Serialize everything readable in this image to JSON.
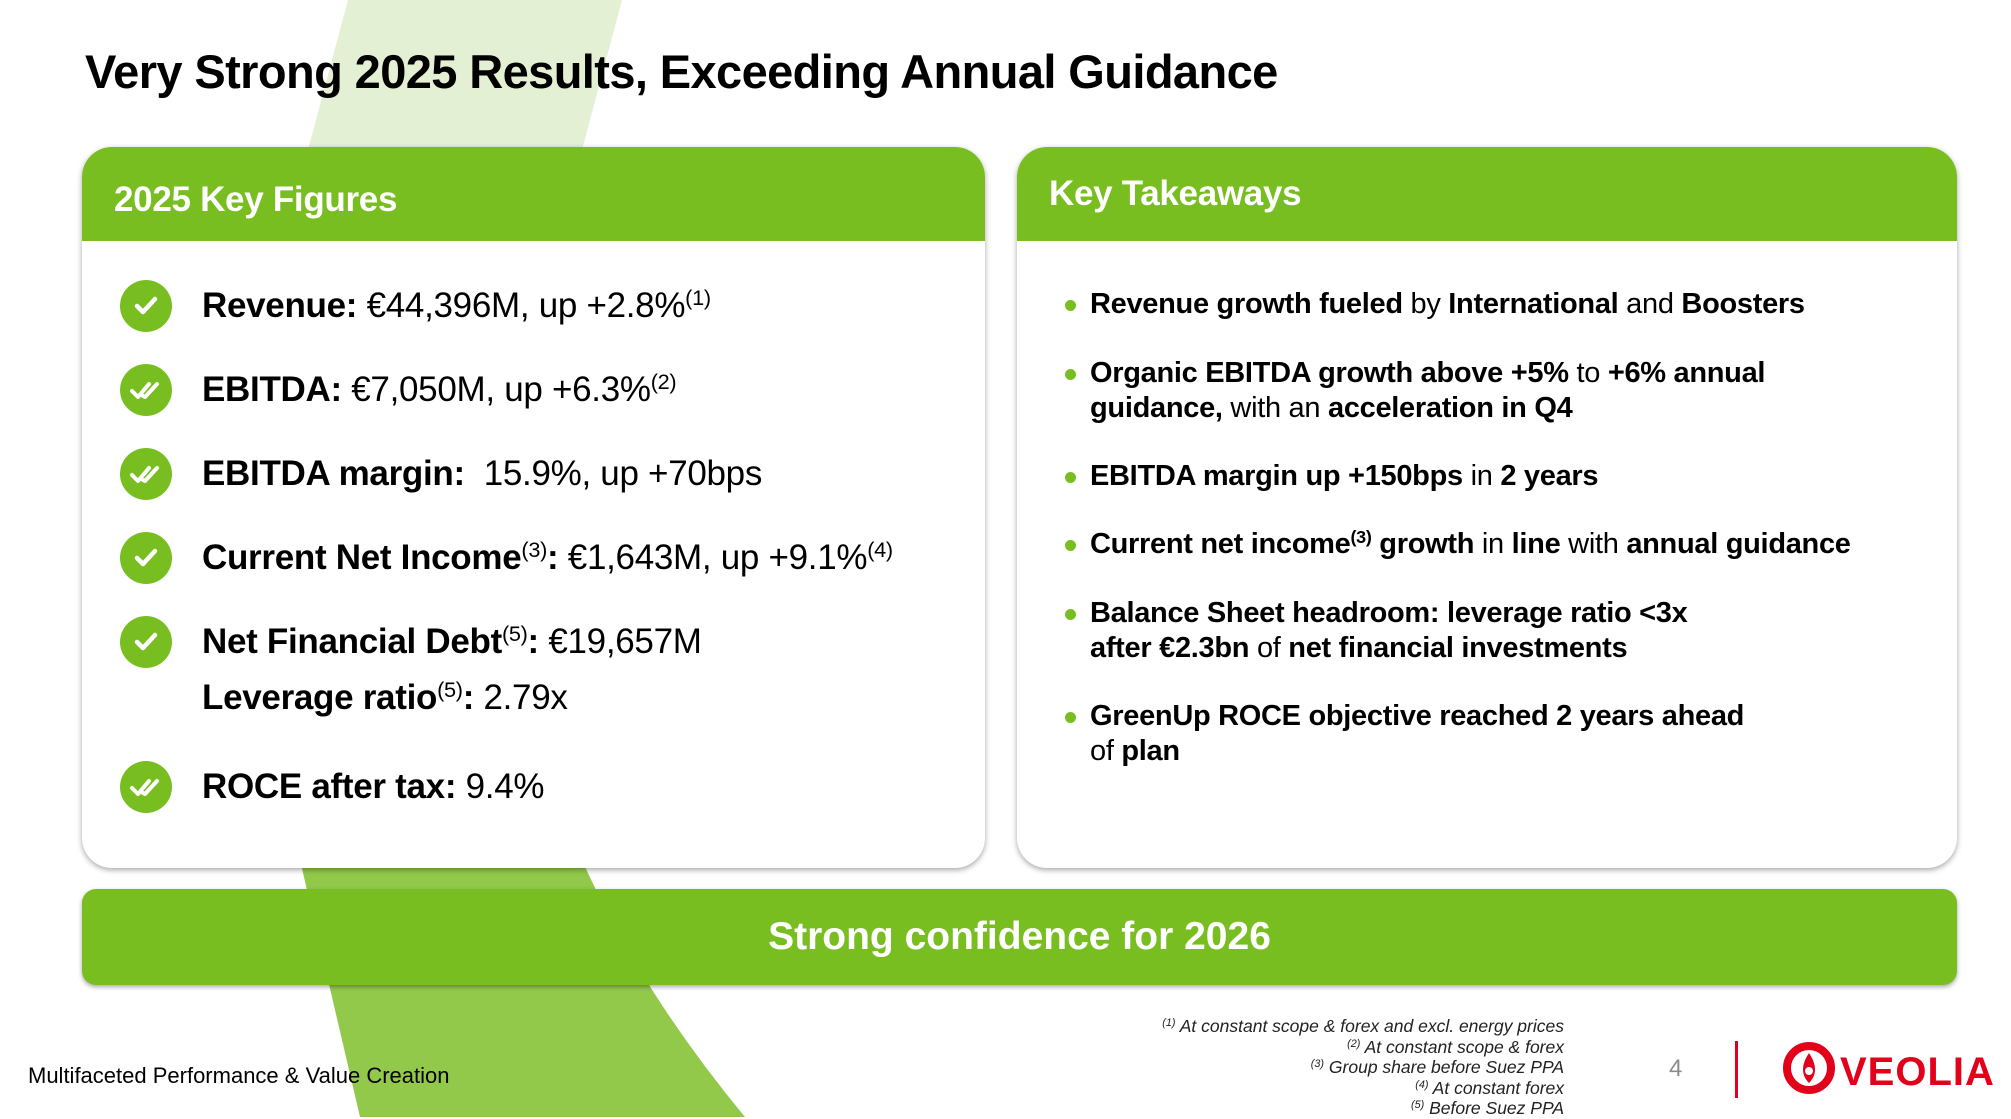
{
  "title": "Very Strong 2025 Results, Exceeding Annual Guidance",
  "colors": {
    "brand_green": "#78be20",
    "light_band": "#e3f0d4",
    "mid_band": "#93c94b",
    "veolia_red": "#e2001a"
  },
  "key_figures": {
    "heading": "2025 Key Figures",
    "items": [
      {
        "icon": "check-icon",
        "segments": [
          {
            "t": "Revenue: ",
            "b": true
          },
          {
            "t": "€44,396M, up +2.8%"
          },
          {
            "t": "(1)",
            "sup": true
          }
        ]
      },
      {
        "icon": "double-check-icon",
        "segments": [
          {
            "t": "EBITDA: ",
            "b": true
          },
          {
            "t": "€7,050M, up +6.3%"
          },
          {
            "t": "(2)",
            "sup": true
          }
        ]
      },
      {
        "icon": "double-check-icon",
        "segments": [
          {
            "t": "EBITDA margin: ",
            "b": true
          },
          {
            "t": " 15.9%, up +70bps"
          }
        ]
      },
      {
        "icon": "check-icon",
        "segments": [
          {
            "t": "Current Net Income",
            "b": true
          },
          {
            "t": "(3)",
            "sup": true
          },
          {
            "t": ": ",
            "b": true
          },
          {
            "t": "€1,643M, up +9.1%"
          },
          {
            "t": "(4)",
            "sup": true
          }
        ]
      },
      {
        "icon": "check-icon",
        "segments": [
          {
            "t": "Net Financial Debt",
            "b": true
          },
          {
            "t": "(5)",
            "sup": true
          },
          {
            "t": ": ",
            "b": true
          },
          {
            "t": "€19,657M"
          }
        ]
      },
      {
        "icon": null,
        "segments": [
          {
            "t": "Leverage ratio",
            "b": true
          },
          {
            "t": "(5)",
            "sup": true
          },
          {
            "t": ": ",
            "b": true
          },
          {
            "t": "2.79x"
          }
        ]
      },
      {
        "icon": "double-check-icon",
        "segments": [
          {
            "t": "ROCE after tax: ",
            "b": true
          },
          {
            "t": "9.4%"
          }
        ]
      }
    ]
  },
  "key_takeaways": {
    "heading": "Key Takeaways",
    "items": [
      {
        "lines": [
          [
            {
              "t": "Revenue growth fueled",
              "b": true
            },
            {
              "t": " by "
            },
            {
              "t": "International",
              "b": true
            },
            {
              "t": " and "
            },
            {
              "t": "Boosters",
              "b": true
            }
          ]
        ]
      },
      {
        "lines": [
          [
            {
              "t": "Organic EBITDA growth above +5%",
              "b": true
            },
            {
              "t": " to "
            },
            {
              "t": "+6% annual",
              "b": true
            }
          ],
          [
            {
              "t": "guidance,",
              "b": true
            },
            {
              "t": " with an "
            },
            {
              "t": "acceleration in Q4",
              "b": true
            }
          ]
        ]
      },
      {
        "lines": [
          [
            {
              "t": "EBITDA margin up +150bps",
              "b": true
            },
            {
              "t": " in "
            },
            {
              "t": "2 years",
              "b": true
            }
          ]
        ]
      },
      {
        "lines": [
          [
            {
              "t": "Current net income",
              "b": true
            },
            {
              "t": "(3)",
              "sup": true,
              "b": true
            },
            {
              "t": " growth",
              "b": true
            },
            {
              "t": " in "
            },
            {
              "t": "line",
              "b": true
            },
            {
              "t": " with "
            },
            {
              "t": "annual guidance",
              "b": true
            }
          ]
        ]
      },
      {
        "lines": [
          [
            {
              "t": "Balance Sheet headroom: leverage ratio <3x",
              "b": true
            }
          ],
          [
            {
              "t": "after €2.3bn",
              "b": true
            },
            {
              "t": " of "
            },
            {
              "t": "net financial investments",
              "b": true
            }
          ]
        ]
      },
      {
        "lines": [
          [
            {
              "t": "GreenUp ROCE objective reached 2 years ahead",
              "b": true
            }
          ],
          [
            {
              "t": "of "
            },
            {
              "t": "plan",
              "b": true
            }
          ]
        ]
      }
    ]
  },
  "banner": "Strong confidence for 2026",
  "footer": {
    "section": "Multifaceted Performance & Value Creation",
    "notes": [
      {
        "mark": "(1)",
        "text": " At constant scope & forex and excl. energy prices"
      },
      {
        "mark": "(2)",
        "text": " At constant scope & forex"
      },
      {
        "mark": "(3)",
        "text": " Group share before Suez PPA"
      },
      {
        "mark": "(4)",
        "text": " At constant forex"
      },
      {
        "mark": "(5)",
        "text": " Before Suez PPA"
      }
    ],
    "page_number": "4",
    "logo_text": "VEOLIA"
  }
}
